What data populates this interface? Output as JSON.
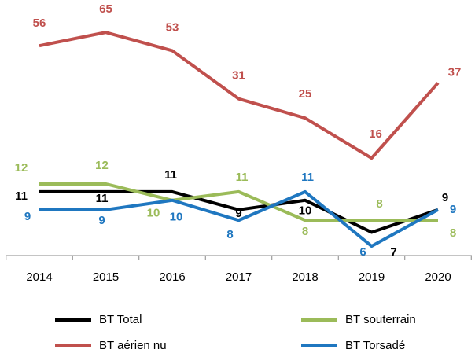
{
  "chart_data": {
    "type": "line",
    "categories": [
      "2014",
      "2015",
      "2016",
      "2017",
      "2018",
      "2019",
      "2020"
    ],
    "log_scale": true,
    "ylim": [
      5.5,
      90
    ],
    "series": [
      {
        "name": "BT Total",
        "color": "#000000",
        "values": [
          11,
          11,
          11,
          9,
          10,
          7,
          9
        ]
      },
      {
        "name": "BT souterrain",
        "color": "#9bbb59",
        "values": [
          12,
          12,
          10,
          11,
          8,
          8,
          8
        ]
      },
      {
        "name": "BT aérien nu",
        "color": "#c0504d",
        "values": [
          56,
          65,
          53,
          31,
          25,
          16,
          37
        ]
      },
      {
        "name": "BT Torsadé",
        "color": "#1f77c0",
        "values": [
          9,
          9,
          10,
          8,
          11,
          6,
          9
        ]
      }
    ]
  }
}
